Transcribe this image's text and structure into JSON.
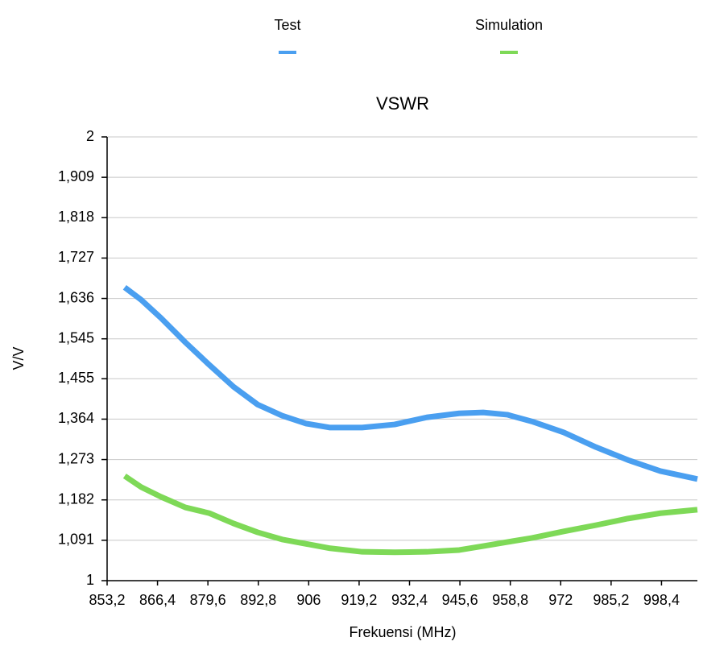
{
  "chart_data": {
    "type": "line",
    "title": "VSWR",
    "xlabel": "Frekuensi (MHz)",
    "ylabel": "V/V",
    "x": [
      857.8,
      862.1,
      867.3,
      873.7,
      880.0,
      886.3,
      892.6,
      899.0,
      905.3,
      911.6,
      920.0,
      928.5,
      936.9,
      945.4,
      951.7,
      958.0,
      964.4,
      972.8,
      981.2,
      989.6,
      998.1,
      1007.8
    ],
    "series": [
      {
        "name": "Test",
        "color": "#4a9ff0",
        "values": [
          1.661,
          1.633,
          1.592,
          1.537,
          1.486,
          1.437,
          1.397,
          1.372,
          1.354,
          1.345,
          1.345,
          1.352,
          1.368,
          1.377,
          1.379,
          1.374,
          1.359,
          1.334,
          1.301,
          1.272,
          1.247,
          1.229
        ]
      },
      {
        "name": "Simulation",
        "color": "#7ed957",
        "values": [
          1.236,
          1.211,
          1.189,
          1.165,
          1.152,
          1.129,
          1.109,
          1.093,
          1.083,
          1.073,
          1.065,
          1.064,
          1.065,
          1.069,
          1.078,
          1.087,
          1.096,
          1.111,
          1.125,
          1.14,
          1.152,
          1.16
        ]
      }
    ],
    "xlim": [
      853.2,
      1007.8
    ],
    "xticks": [
      {
        "value": 853.2,
        "label": "853,2"
      },
      {
        "value": 866.4,
        "label": "866,4"
      },
      {
        "value": 879.6,
        "label": "879,6"
      },
      {
        "value": 892.8,
        "label": "892,8"
      },
      906,
      {
        "value": 919.2,
        "label": "919,2"
      },
      {
        "value": 932.4,
        "label": "932,4"
      },
      {
        "value": 945.6,
        "label": "945,6"
      },
      {
        "value": 958.8,
        "label": "958,8"
      },
      972,
      {
        "value": 985.2,
        "label": "985,2"
      },
      {
        "value": 998.4,
        "label": "998,4"
      }
    ],
    "ylim": [
      1,
      2
    ],
    "yticks": [
      1,
      {
        "value": 1.091,
        "label": "1,091"
      },
      {
        "value": 1.182,
        "label": "1,182"
      },
      {
        "value": 1.273,
        "label": "1,273"
      },
      {
        "value": 1.364,
        "label": "1,364"
      },
      {
        "value": 1.455,
        "label": "1,455"
      },
      {
        "value": 1.545,
        "label": "1,545"
      },
      {
        "value": 1.636,
        "label": "1,636"
      },
      {
        "value": 1.727,
        "label": "1,727"
      },
      {
        "value": 1.818,
        "label": "1,818"
      },
      {
        "value": 1.909,
        "label": "1,909"
      },
      2
    ],
    "grid": true,
    "legend": "top"
  }
}
